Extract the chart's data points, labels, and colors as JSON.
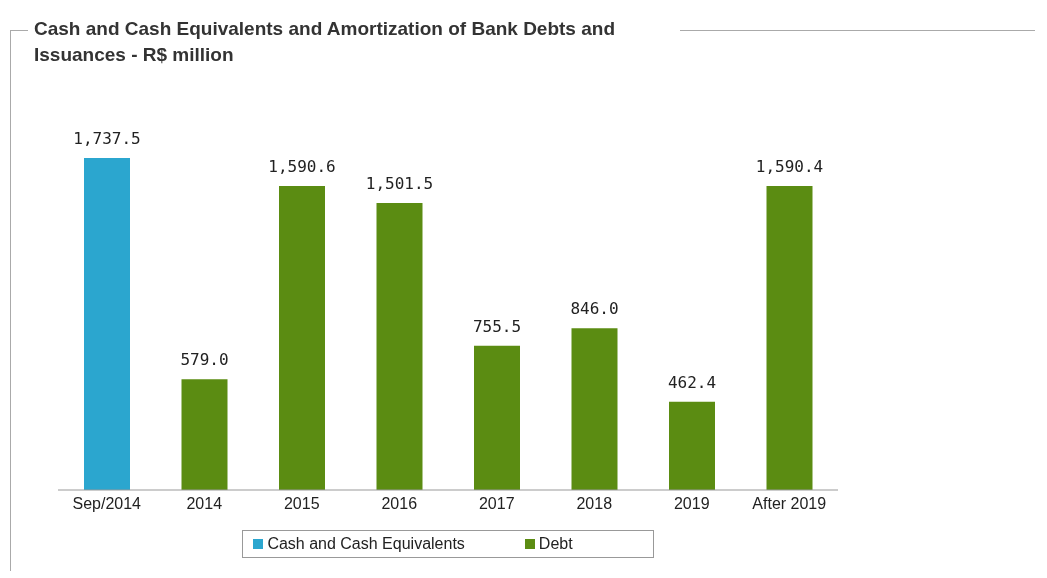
{
  "chart_data": {
    "type": "bar",
    "title": "Cash and Cash Equivalents and Amortization of Bank Debts and Issuances - R$ million",
    "categories": [
      "Sep/2014",
      "2014",
      "2015",
      "2016",
      "2017",
      "2018",
      "2019",
      "After 2019"
    ],
    "series": [
      {
        "name": "Cash and Cash Equivalents",
        "color": "#2ba6cf",
        "values": [
          1737.5,
          null,
          null,
          null,
          null,
          null,
          null,
          null
        ],
        "value_labels": [
          "1,737.5",
          null,
          null,
          null,
          null,
          null,
          null,
          null
        ]
      },
      {
        "name": "Debt",
        "color": "#5b8c12",
        "values": [
          null,
          579.0,
          1590.6,
          1501.5,
          755.5,
          846.0,
          462.4,
          1590.4
        ],
        "value_labels": [
          null,
          "579.0",
          "1,590.6",
          "1,501.5",
          "755.5",
          "846.0",
          "462.4",
          "1,590.4"
        ]
      }
    ],
    "legend": "bottom"
  }
}
